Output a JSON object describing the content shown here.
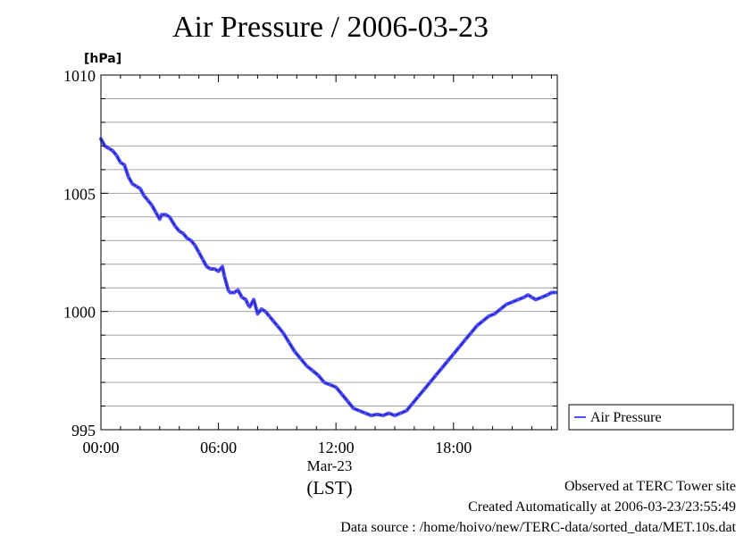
{
  "chart_data": {
    "type": "line",
    "title": "Air Pressure / 2006-03-23",
    "ylabel": "[hPa]",
    "xlabel": "(LST)",
    "date_label": "Mar-23",
    "ylim": [
      995,
      1010
    ],
    "xlim": [
      0,
      23.3
    ],
    "y_ticks": [
      995,
      1000,
      1005,
      1010
    ],
    "x_ticks": [
      {
        "value": 0,
        "label": "00:00"
      },
      {
        "value": 6,
        "label": "06:00"
      },
      {
        "value": 12,
        "label": "12:00"
      },
      {
        "value": 18,
        "label": "18:00"
      }
    ],
    "grid": true,
    "legend_position": "right",
    "series": [
      {
        "name": "Air Pressure",
        "color": "#5050ff",
        "x": [
          0,
          0.2,
          0.4,
          0.6,
          0.8,
          1.0,
          1.2,
          1.4,
          1.6,
          1.8,
          2.0,
          2.2,
          2.4,
          2.6,
          2.8,
          3.0,
          3.1,
          3.3,
          3.5,
          3.8,
          4.0,
          4.2,
          4.4,
          4.6,
          4.8,
          5.0,
          5.2,
          5.4,
          5.6,
          5.8,
          6.0,
          6.2,
          6.3,
          6.5,
          6.6,
          6.8,
          7.0,
          7.2,
          7.4,
          7.5,
          7.6,
          7.8,
          8.0,
          8.2,
          8.4,
          8.6,
          8.8,
          9.0,
          9.3,
          9.6,
          9.9,
          10.2,
          10.5,
          10.8,
          11.1,
          11.4,
          11.7,
          12.0,
          12.3,
          12.6,
          12.9,
          13.2,
          13.5,
          13.8,
          14.1,
          14.4,
          14.7,
          15.0,
          15.3,
          15.6,
          15.9,
          16.2,
          16.5,
          16.8,
          17.1,
          17.4,
          17.7,
          18.0,
          18.3,
          18.6,
          18.9,
          19.2,
          19.5,
          19.8,
          20.1,
          20.4,
          20.7,
          21.0,
          21.3,
          21.6,
          21.8,
          22.0,
          22.2,
          22.5,
          22.8,
          23.0,
          23.2
        ],
        "values": [
          1007.3,
          1007.0,
          1006.9,
          1006.8,
          1006.6,
          1006.3,
          1006.2,
          1005.7,
          1005.4,
          1005.3,
          1005.2,
          1004.9,
          1004.7,
          1004.5,
          1004.2,
          1003.9,
          1004.1,
          1004.1,
          1004.0,
          1003.6,
          1003.4,
          1003.3,
          1003.1,
          1003.0,
          1002.8,
          1002.5,
          1002.2,
          1001.9,
          1001.8,
          1001.8,
          1001.7,
          1001.9,
          1001.5,
          1000.9,
          1000.8,
          1000.8,
          1000.9,
          1000.6,
          1000.5,
          1000.3,
          1000.2,
          1000.5,
          999.9,
          1000.1,
          1000.0,
          999.8,
          999.6,
          999.4,
          999.1,
          998.7,
          998.3,
          998.0,
          997.7,
          997.5,
          997.3,
          997.0,
          996.9,
          996.8,
          996.5,
          996.2,
          995.9,
          995.8,
          995.7,
          995.6,
          995.65,
          995.6,
          995.7,
          995.6,
          995.7,
          995.8,
          996.1,
          996.4,
          996.7,
          997.0,
          997.3,
          997.6,
          997.9,
          998.2,
          998.5,
          998.8,
          999.1,
          999.4,
          999.6,
          999.8,
          999.9,
          1000.1,
          1000.3,
          1000.4,
          1000.5,
          1000.6,
          1000.7,
          1000.6,
          1000.5,
          1000.6,
          1000.7,
          1000.8,
          1000.8
        ]
      }
    ]
  },
  "footer": {
    "line1": "Observed at TERC Tower site",
    "line2": "Created Automatically at 2006-03-23/23:55:49",
    "line3": "Data source : /home/hoivo/new/TERC-data/sorted_data/MET.10s.dat"
  }
}
